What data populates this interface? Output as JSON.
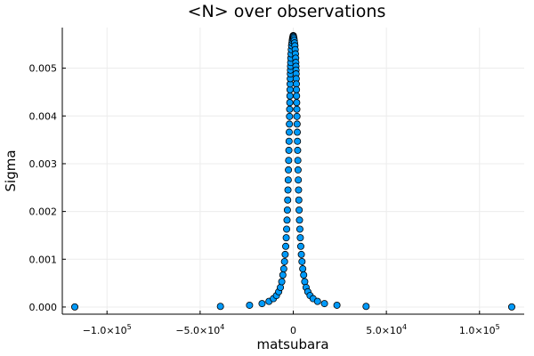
{
  "chart_data": {
    "type": "scatter",
    "title": "<N> over observations",
    "xlabel": "matsubara",
    "ylabel": "Sigma",
    "xlim": [
      -124000,
      124000
    ],
    "ylim": [
      -0.00015,
      0.00585
    ],
    "grid": true,
    "marker_color": "#009AFA",
    "x_ticks": [
      {
        "value": -100000,
        "label": "−1.0×10",
        "exp": "5"
      },
      {
        "value": -50000,
        "label": "−5.0×10",
        "exp": "4"
      },
      {
        "value": 0,
        "label": "0",
        "exp": ""
      },
      {
        "value": 50000,
        "label": "5.0×10",
        "exp": "4"
      },
      {
        "value": 100000,
        "label": "1.0×10",
        "exp": "5"
      }
    ],
    "y_ticks": [
      {
        "value": 0,
        "label": "0.000"
      },
      {
        "value": 0.001,
        "label": "0.001"
      },
      {
        "value": 0.002,
        "label": "0.002"
      },
      {
        "value": 0.003,
        "label": "0.003"
      },
      {
        "value": 0.004,
        "label": "0.004"
      },
      {
        "value": 0.005,
        "label": "0.005"
      }
    ],
    "series": [
      {
        "x": [
          -117300,
          -39100,
          -23460,
          -16760,
          -13030,
          -10660,
          -9020,
          -7820,
          -6900,
          -6170,
          -5590,
          -5100,
          -4690,
          -4340,
          -4040,
          -3780,
          -3550,
          -3340,
          -3160,
          -2990,
          -2840,
          -2700,
          -2580,
          -2460,
          -2350,
          -2250,
          -2160,
          -2070,
          -1990,
          -1920,
          -1850,
          -1780,
          -1720,
          -1660,
          -1600,
          -1550,
          -1500,
          -1440,
          -1380,
          -1300,
          -1200,
          -1050,
          -880,
          -700,
          -520,
          -360,
          -220,
          -100,
          -30,
          30,
          100,
          220,
          360,
          520,
          700,
          880,
          1050,
          1200,
          1300,
          1380,
          1440,
          1500,
          1550,
          1600,
          1660,
          1720,
          1780,
          1850,
          1920,
          1990,
          2070,
          2160,
          2250,
          2350,
          2460,
          2580,
          2700,
          2840,
          2990,
          3160,
          3340,
          3550,
          3780,
          4040,
          4340,
          4690,
          5100,
          5590,
          6170,
          6900,
          7820,
          9020,
          10660,
          13030,
          16760,
          23460,
          39100,
          117300
        ],
        "y": [
          1.5e-06,
          1.3e-05,
          3.7e-05,
          7.2e-05,
          0.000118,
          0.000175,
          0.00024,
          0.00032,
          0.00041,
          0.00053,
          0.00067,
          0.0008,
          0.00095,
          0.0011,
          0.00127,
          0.00145,
          0.00163,
          0.00182,
          0.00203,
          0.00224,
          0.00245,
          0.00266,
          0.00287,
          0.00307,
          0.00328,
          0.00347,
          0.00366,
          0.00383,
          0.00399,
          0.00414,
          0.00428,
          0.00442,
          0.00455,
          0.00467,
          0.00478,
          0.00488,
          0.00496,
          0.00504,
          0.00512,
          0.00521,
          0.0053,
          0.00539,
          0.00547,
          0.00553,
          0.00558,
          0.00562,
          0.00565,
          0.00567,
          0.00568,
          0.00568,
          0.00567,
          0.00565,
          0.00562,
          0.00558,
          0.00553,
          0.00547,
          0.00539,
          0.0053,
          0.00521,
          0.00512,
          0.00504,
          0.00496,
          0.00488,
          0.00478,
          0.00467,
          0.00455,
          0.00442,
          0.00428,
          0.00414,
          0.00399,
          0.00383,
          0.00366,
          0.00347,
          0.00328,
          0.00307,
          0.00287,
          0.00266,
          0.00245,
          0.00224,
          0.00203,
          0.00182,
          0.00163,
          0.00145,
          0.00127,
          0.0011,
          0.00095,
          0.0008,
          0.00067,
          0.00053,
          0.00041,
          0.00032,
          0.00024,
          0.000175,
          0.000118,
          7.2e-05,
          3.7e-05,
          1.3e-05,
          1.5e-06
        ]
      }
    ]
  }
}
